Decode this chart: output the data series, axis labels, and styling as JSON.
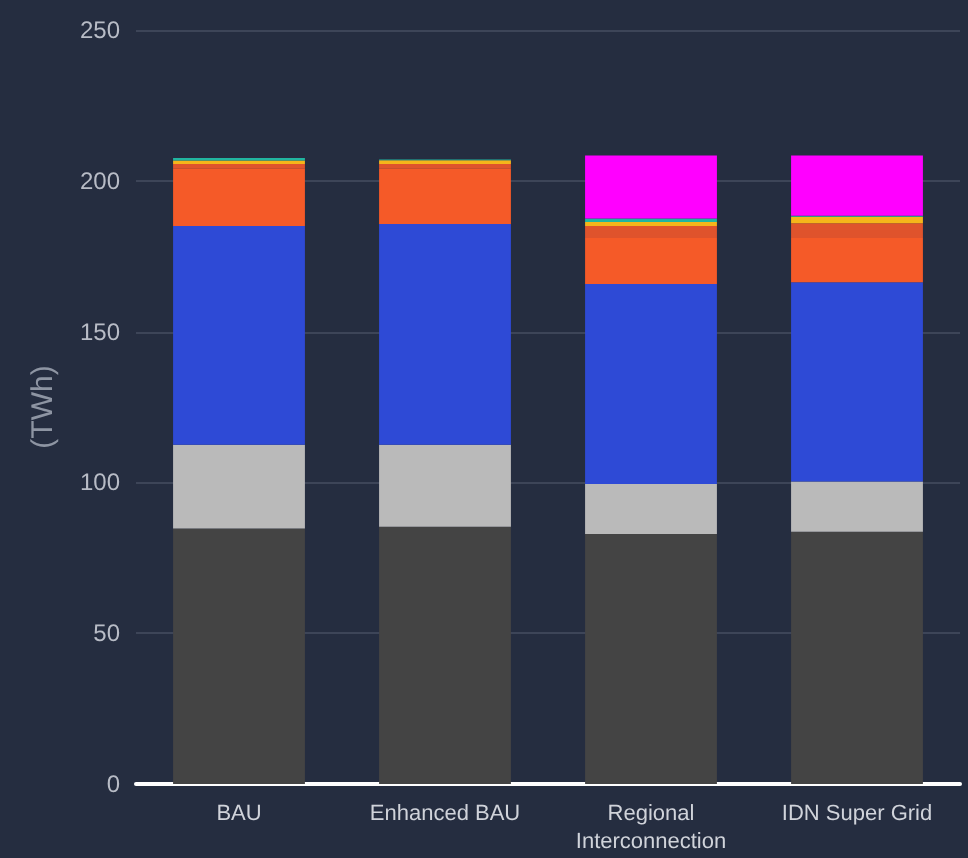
{
  "chart_data": {
    "type": "bar",
    "stacked": true,
    "ylabel": "(TWh)",
    "categories": [
      "BAU",
      "Enhanced BAU",
      "Regional\nInterconnection",
      "IDN Super Grid"
    ],
    "series": [
      {
        "color": "#444444",
        "values": [
          84.7,
          85.3,
          82.9,
          83.6
        ]
      },
      {
        "color": "#bababa",
        "values": [
          27.8,
          27.2,
          16.6,
          16.7
        ]
      },
      {
        "color": "#2e4ad6",
        "values": [
          72.5,
          73.2,
          66.3,
          66.1
        ]
      },
      {
        "color": "#f55a28",
        "values": [
          19.2,
          18.5,
          15.2,
          14.6
        ]
      },
      {
        "color": "#df532c",
        "values": [
          1.4,
          1.4,
          4.0,
          4.9
        ]
      },
      {
        "color": "#f5b51a",
        "values": [
          1.1,
          1.2,
          1.3,
          2.2
        ]
      },
      {
        "color": "#21b5a0",
        "values": [
          0.9,
          0.3,
          1.2,
          0.3
        ]
      },
      {
        "color": "#ff00ff",
        "values": [
          0,
          0,
          20.9,
          20.0
        ]
      }
    ],
    "ylim": [
      0,
      250
    ],
    "yticks": [
      0,
      50,
      100,
      150,
      200,
      250
    ],
    "grid": "y"
  }
}
